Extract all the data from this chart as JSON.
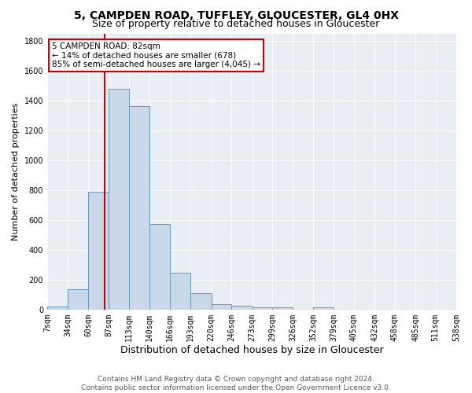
{
  "title1": "5, CAMPDEN ROAD, TUFFLEY, GLOUCESTER, GL4 0HX",
  "title2": "Size of property relative to detached houses in Gloucester",
  "xlabel": "Distribution of detached houses by size in Gloucester",
  "ylabel": "Number of detached properties",
  "bin_edges": [
    7,
    34,
    60,
    87,
    113,
    140,
    166,
    193,
    220,
    246,
    273,
    299,
    326,
    352,
    379,
    405,
    432,
    458,
    485,
    511,
    538
  ],
  "bar_heights": [
    20,
    135,
    790,
    1480,
    1365,
    575,
    245,
    110,
    35,
    25,
    15,
    15,
    0,
    15,
    0,
    0,
    0,
    0,
    0,
    0
  ],
  "bar_color": "#c8d8e8",
  "bar_edgecolor": "#6699bb",
  "property_size": 82,
  "redline_color": "#cc0000",
  "annotation_text": "5 CAMPDEN ROAD: 82sqm\n← 14% of detached houses are smaller (678)\n85% of semi-detached houses are larger (4,045) →",
  "annotation_box_color": "#ffffff",
  "annotation_border_color": "#cc0000",
  "ylim": [
    0,
    1850
  ],
  "yticks": [
    0,
    200,
    400,
    600,
    800,
    1000,
    1200,
    1400,
    1600,
    1800
  ],
  "background_color": "#e8eef4",
  "footer_text": "Contains HM Land Registry data © Crown copyright and database right 2024.\nContains public sector information licensed under the Open Government Licence v3.0.",
  "title1_fontsize": 10,
  "title2_fontsize": 9,
  "xlabel_fontsize": 9,
  "ylabel_fontsize": 8,
  "tick_fontsize": 7,
  "annotation_fontsize": 7.5,
  "footer_fontsize": 6.5
}
